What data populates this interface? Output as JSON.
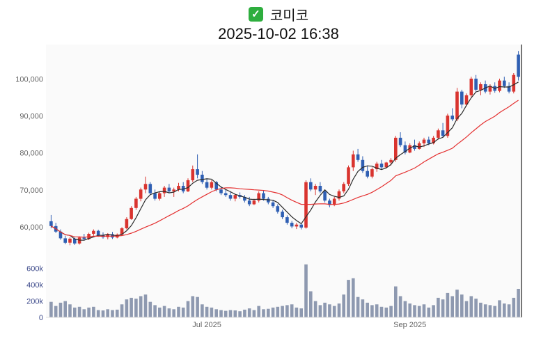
{
  "header": {
    "check_glyph": "✓",
    "title": "코미코",
    "timestamp": "2025-10-02 16:38"
  },
  "colors": {
    "up": "#d9342f",
    "down": "#2f5fb3",
    "ma_short": "#2a2a2a",
    "ma_long": "#e43030",
    "volume_bar": "#8e99b0",
    "axis_text": "#666666",
    "volume_axis_text": "#3f4c8c",
    "plot_bg": "#fafafa",
    "border": "#4a4a4a",
    "baseline": "#dddddd",
    "check_bg": "#2eae3e"
  },
  "chart_data": {
    "type": "candlestick",
    "title": "코미코",
    "subtitle": "2025-10-02 16:38",
    "price_axis": {
      "ticks": [
        60000,
        70000,
        80000,
        90000,
        100000
      ],
      "labels": [
        "60,000",
        "70,000",
        "80,000",
        "90,000",
        "100,000"
      ],
      "range": [
        53200,
        108200
      ]
    },
    "volume_axis": {
      "ticks": [
        0,
        200000,
        400000,
        600000
      ],
      "labels": [
        "0",
        "200k",
        "400k",
        "600k"
      ],
      "range": [
        0,
        700000
      ]
    },
    "x_axis_labels": [
      {
        "label": "Jul 2025",
        "month": "2025-07"
      },
      {
        "label": "Sep 2025",
        "month": "2025-09"
      }
    ],
    "overlays": [
      {
        "name": "short-moving-average",
        "window": 5,
        "color": "#2a2a2a"
      },
      {
        "name": "long-moving-average",
        "window": 20,
        "color": "#e43030"
      }
    ],
    "columns": [
      "date",
      "open",
      "high",
      "low",
      "close",
      "volume"
    ],
    "candles": [
      [
        "2025-05-14",
        61500,
        63200,
        59600,
        60200,
        190000
      ],
      [
        "2025-05-15",
        60200,
        61100,
        58300,
        58700,
        140000
      ],
      [
        "2025-05-16",
        58700,
        59300,
        56500,
        56900,
        180000
      ],
      [
        "2025-05-19",
        56900,
        57600,
        55300,
        55700,
        200000
      ],
      [
        "2025-05-20",
        55700,
        57200,
        55000,
        56800,
        160000
      ],
      [
        "2025-05-21",
        56800,
        57100,
        55100,
        55500,
        120000
      ],
      [
        "2025-05-22",
        55500,
        57400,
        55200,
        57100,
        130000
      ],
      [
        "2025-05-23",
        57100,
        58100,
        56300,
        56700,
        100000
      ],
      [
        "2025-05-26",
        56700,
        58400,
        56400,
        58100,
        120000
      ],
      [
        "2025-05-27",
        58100,
        59300,
        57600,
        58900,
        130000
      ],
      [
        "2025-05-28",
        58900,
        59200,
        57300,
        57700,
        90000
      ],
      [
        "2025-05-29",
        57700,
        58500,
        56800,
        57200,
        85000
      ],
      [
        "2025-05-30",
        57200,
        58300,
        56600,
        58000,
        100000
      ],
      [
        "2025-06-02",
        58000,
        58600,
        56700,
        57100,
        90000
      ],
      [
        "2025-06-03",
        57100,
        58200,
        56900,
        57900,
        95000
      ],
      [
        "2025-06-04",
        57900,
        59900,
        57700,
        59600,
        160000
      ],
      [
        "2025-06-05",
        59600,
        62600,
        59300,
        62100,
        220000
      ],
      [
        "2025-06-09",
        62100,
        65600,
        61900,
        65100,
        240000
      ],
      [
        "2025-06-10",
        65100,
        68100,
        64600,
        67600,
        230000
      ],
      [
        "2025-06-11",
        67600,
        70600,
        66900,
        70100,
        260000
      ],
      [
        "2025-06-12",
        70100,
        73600,
        69100,
        71600,
        280000
      ],
      [
        "2025-06-13",
        71600,
        72100,
        68600,
        69100,
        190000
      ],
      [
        "2025-06-16",
        69100,
        70100,
        67100,
        67600,
        150000
      ],
      [
        "2025-06-17",
        67600,
        69600,
        67100,
        69100,
        120000
      ],
      [
        "2025-06-18",
        69100,
        71100,
        68100,
        70600,
        140000
      ],
      [
        "2025-06-19",
        70600,
        71600,
        69100,
        69600,
        110000
      ],
      [
        "2025-06-20",
        69600,
        70600,
        68100,
        70100,
        100000
      ],
      [
        "2025-06-23",
        70100,
        71900,
        69600,
        71100,
        130000
      ],
      [
        "2025-06-24",
        71100,
        72100,
        69100,
        69600,
        120000
      ],
      [
        "2025-06-25",
        69600,
        73100,
        69400,
        72600,
        200000
      ],
      [
        "2025-06-26",
        72600,
        76600,
        72100,
        75600,
        260000
      ],
      [
        "2025-06-27",
        75600,
        79600,
        73100,
        74100,
        250000
      ],
      [
        "2025-06-30",
        74100,
        75100,
        71600,
        72100,
        160000
      ],
      [
        "2025-07-01",
        72100,
        73100,
        70100,
        70600,
        130000
      ],
      [
        "2025-07-02",
        70600,
        72600,
        70100,
        72100,
        120000
      ],
      [
        "2025-07-03",
        72100,
        72400,
        69600,
        70100,
        100000
      ],
      [
        "2025-07-04",
        70100,
        70900,
        68600,
        69100,
        90000
      ],
      [
        "2025-07-07",
        69100,
        70100,
        68100,
        68600,
        80000
      ],
      [
        "2025-07-08",
        68600,
        69600,
        67100,
        67600,
        90000
      ],
      [
        "2025-07-09",
        67600,
        68900,
        66900,
        68600,
        85000
      ],
      [
        "2025-07-10",
        68600,
        69300,
        67600,
        68100,
        75000
      ],
      [
        "2025-07-11",
        68100,
        68600,
        66600,
        67100,
        95000
      ],
      [
        "2025-07-14",
        67100,
        68100,
        65600,
        66100,
        110000
      ],
      [
        "2025-07-15",
        66100,
        67600,
        65900,
        67100,
        90000
      ],
      [
        "2025-07-16",
        67100,
        69600,
        66600,
        69100,
        140000
      ],
      [
        "2025-07-17",
        69100,
        69900,
        67100,
        67600,
        100000
      ],
      [
        "2025-07-18",
        67600,
        68100,
        66100,
        66600,
        105000
      ],
      [
        "2025-07-21",
        66600,
        67300,
        65100,
        65600,
        120000
      ],
      [
        "2025-07-22",
        65600,
        66100,
        63600,
        64100,
        130000
      ],
      [
        "2025-07-23",
        64100,
        64600,
        62100,
        62600,
        140000
      ],
      [
        "2025-07-24",
        62600,
        63100,
        60600,
        61100,
        150000
      ],
      [
        "2025-07-25",
        61100,
        61600,
        59600,
        60100,
        160000
      ],
      [
        "2025-07-28",
        60100,
        61100,
        59400,
        60600,
        120000
      ],
      [
        "2025-07-29",
        60600,
        61000,
        59300,
        59800,
        110000
      ],
      [
        "2025-07-30",
        59800,
        72600,
        59500,
        72100,
        650000
      ],
      [
        "2025-07-31",
        72100,
        73100,
        69600,
        70100,
        320000
      ],
      [
        "2025-08-01",
        70100,
        71600,
        68600,
        71100,
        200000
      ],
      [
        "2025-08-04",
        71100,
        72100,
        69100,
        69600,
        150000
      ],
      [
        "2025-08-05",
        69600,
        70100,
        66600,
        67100,
        180000
      ],
      [
        "2025-08-06",
        67100,
        67600,
        65300,
        65900,
        160000
      ],
      [
        "2025-08-07",
        65900,
        68100,
        65600,
        67600,
        140000
      ],
      [
        "2025-08-08",
        67600,
        70100,
        67100,
        69600,
        170000
      ],
      [
        "2025-08-11",
        69600,
        72100,
        69100,
        71600,
        280000
      ],
      [
        "2025-08-12",
        71600,
        76600,
        71100,
        76100,
        460000
      ],
      [
        "2025-08-13",
        76100,
        80600,
        75100,
        79600,
        480000
      ],
      [
        "2025-08-14",
        79600,
        81100,
        77600,
        78100,
        250000
      ],
      [
        "2025-08-18",
        78100,
        79100,
        74600,
        75100,
        220000
      ],
      [
        "2025-08-19",
        75100,
        76600,
        73100,
        73600,
        180000
      ],
      [
        "2025-08-20",
        73600,
        76100,
        73100,
        75600,
        150000
      ],
      [
        "2025-08-21",
        75600,
        77600,
        74900,
        77100,
        160000
      ],
      [
        "2025-08-22",
        77100,
        78100,
        75600,
        76100,
        130000
      ],
      [
        "2025-08-25",
        76100,
        77600,
        75800,
        77400,
        120000
      ],
      [
        "2025-08-26",
        77400,
        78600,
        76600,
        78100,
        140000
      ],
      [
        "2025-08-27",
        78100,
        84600,
        77600,
        84100,
        380000
      ],
      [
        "2025-08-28",
        84100,
        85600,
        81600,
        82100,
        260000
      ],
      [
        "2025-08-29",
        82100,
        83100,
        79600,
        80100,
        200000
      ],
      [
        "2025-09-01",
        80100,
        82600,
        79900,
        82100,
        170000
      ],
      [
        "2025-09-02",
        82100,
        83600,
        80600,
        81100,
        150000
      ],
      [
        "2025-09-03",
        81100,
        83100,
        80900,
        82600,
        140000
      ],
      [
        "2025-09-04",
        82600,
        84100,
        81600,
        83600,
        160000
      ],
      [
        "2025-09-05",
        83600,
        84400,
        82100,
        82600,
        120000
      ],
      [
        "2025-09-08",
        82600,
        84600,
        82300,
        84100,
        150000
      ],
      [
        "2025-09-09",
        84100,
        86600,
        83600,
        86100,
        240000
      ],
      [
        "2025-09-10",
        86100,
        88100,
        84100,
        84600,
        220000
      ],
      [
        "2025-09-11",
        84600,
        90600,
        84100,
        90100,
        300000
      ],
      [
        "2025-09-12",
        90100,
        92100,
        88600,
        89100,
        260000
      ],
      [
        "2025-09-15",
        89100,
        97600,
        88600,
        96600,
        340000
      ],
      [
        "2025-09-16",
        96600,
        97100,
        92100,
        93100,
        280000
      ],
      [
        "2025-09-17",
        93100,
        96100,
        92600,
        95600,
        200000
      ],
      [
        "2025-09-18",
        95600,
        100600,
        95100,
        100100,
        260000
      ],
      [
        "2025-09-19",
        100100,
        101100,
        96600,
        97100,
        230000
      ],
      [
        "2025-09-22",
        97100,
        99100,
        95600,
        98600,
        180000
      ],
      [
        "2025-09-23",
        98600,
        99600,
        96100,
        96600,
        160000
      ],
      [
        "2025-09-24",
        96600,
        98600,
        95800,
        98100,
        150000
      ],
      [
        "2025-09-25",
        98100,
        99100,
        96300,
        96800,
        140000
      ],
      [
        "2025-09-26",
        96800,
        100100,
        96400,
        99600,
        210000
      ],
      [
        "2025-09-29",
        99600,
        100600,
        97600,
        98100,
        170000
      ],
      [
        "2025-09-30",
        98100,
        99100,
        96100,
        96600,
        160000
      ],
      [
        "2025-10-01",
        96600,
        101600,
        96100,
        101100,
        240000
      ],
      [
        "2025-10-02",
        106600,
        107600,
        99600,
        100600,
        350000
      ]
    ]
  }
}
